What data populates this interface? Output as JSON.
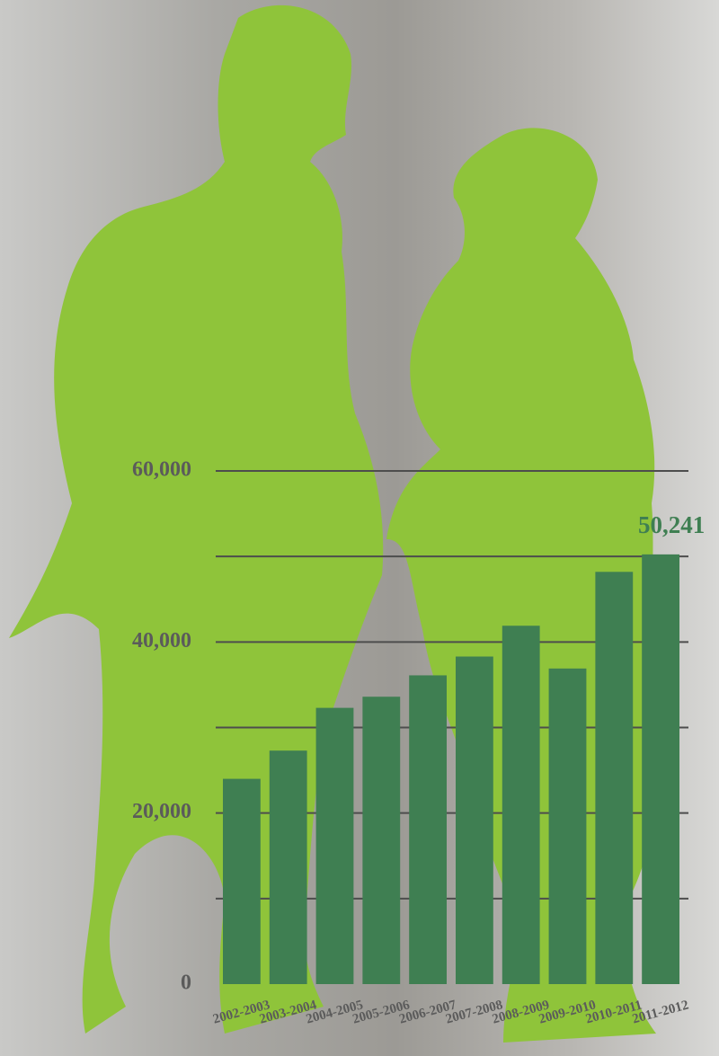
{
  "chart_data": {
    "type": "bar",
    "categories": [
      "2002-2003",
      "2003-2004",
      "2004-2005",
      "2005-2006",
      "2006-2007",
      "2007-2008",
      "2008-2009",
      "2009-2010",
      "2010-2011",
      "2011-2012"
    ],
    "values": [
      24000,
      27300,
      32300,
      33600,
      36100,
      38300,
      41900,
      36900,
      48200,
      50241
    ],
    "value_labels": [
      null,
      null,
      null,
      null,
      null,
      null,
      null,
      null,
      null,
      "50,241"
    ],
    "color": "#3f7f52",
    "ylim": [
      0,
      60000
    ],
    "yticks": [
      0,
      {
        "value": 20000,
        "label": "20,000"
      },
      {
        "value": 40000,
        "label": "40,000"
      },
      {
        "value": 60000,
        "label": "60,000"
      }
    ],
    "gridlines": [
      10000,
      20000,
      30000,
      40000,
      50000,
      60000
    ],
    "grid": true
  }
}
